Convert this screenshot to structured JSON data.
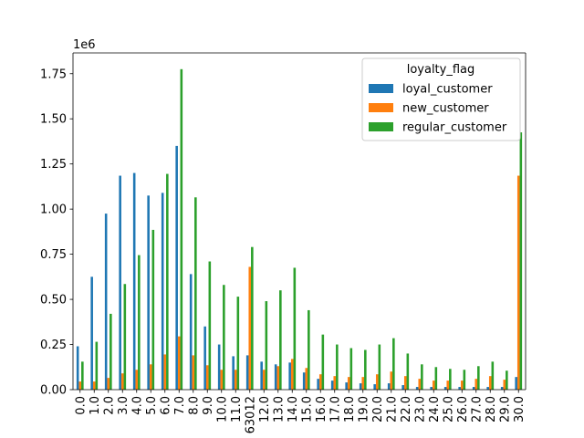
{
  "chart_data": {
    "type": "bar",
    "title": "",
    "xlabel": "",
    "ylabel": "",
    "y_multiplier_label": "1e6",
    "ylim": [
      0,
      1.865
    ],
    "yticks": [
      0.0,
      0.25,
      0.5,
      0.75,
      1.0,
      1.25,
      1.5,
      1.75
    ],
    "ytick_labels": [
      "0.00",
      "0.25",
      "0.50",
      "0.75",
      "1.00",
      "1.25",
      "1.50",
      "1.75"
    ],
    "categories": [
      "0.0",
      "1.0",
      "2.0",
      "3.0",
      "4.0",
      "5.0",
      "6.0",
      "7.0",
      "8.0",
      "9.0",
      "10.0",
      "11.0",
      "63012",
      "12.0",
      "13.0",
      "14.0",
      "15.0",
      "16.0",
      "17.0",
      "18.0",
      "19.0",
      "20.0",
      "21.0",
      "22.0",
      "23.0",
      "24.0",
      "25.0",
      "26.0",
      "27.0",
      "28.0",
      "29.0",
      "30.0"
    ],
    "legend": {
      "title": "loyalty_flag",
      "position": "top-right"
    },
    "grid": false,
    "series": [
      {
        "name": "loyal_customer",
        "color": "#1f77b4",
        "values": [
          0.24,
          0.625,
          0.975,
          1.185,
          1.2,
          1.075,
          1.09,
          1.35,
          0.64,
          0.35,
          0.25,
          0.185,
          0.19,
          0.155,
          0.14,
          0.15,
          0.095,
          0.06,
          0.05,
          0.04,
          0.035,
          0.03,
          0.035,
          0.025,
          0.015,
          0.015,
          0.015,
          0.015,
          0.015,
          0.015,
          0.015,
          0.07
        ]
      },
      {
        "name": "new_customer",
        "color": "#ff7f0e",
        "values": [
          0.045,
          0.045,
          0.065,
          0.09,
          0.11,
          0.14,
          0.195,
          0.295,
          0.19,
          0.135,
          0.11,
          0.11,
          0.68,
          0.11,
          0.13,
          0.17,
          0.12,
          0.085,
          0.075,
          0.07,
          0.07,
          0.085,
          0.1,
          0.075,
          0.06,
          0.05,
          0.05,
          0.05,
          0.06,
          0.075,
          0.055,
          1.185
        ]
      },
      {
        "name": "regular_customer",
        "color": "#2ca02c",
        "values": [
          0.155,
          0.265,
          0.42,
          0.585,
          0.745,
          0.885,
          1.195,
          1.775,
          1.065,
          0.71,
          0.58,
          0.515,
          0.79,
          0.49,
          0.55,
          0.675,
          0.44,
          0.305,
          0.25,
          0.23,
          0.22,
          0.25,
          0.285,
          0.2,
          0.14,
          0.125,
          0.115,
          0.11,
          0.13,
          0.155,
          0.105,
          1.425
        ]
      }
    ]
  }
}
